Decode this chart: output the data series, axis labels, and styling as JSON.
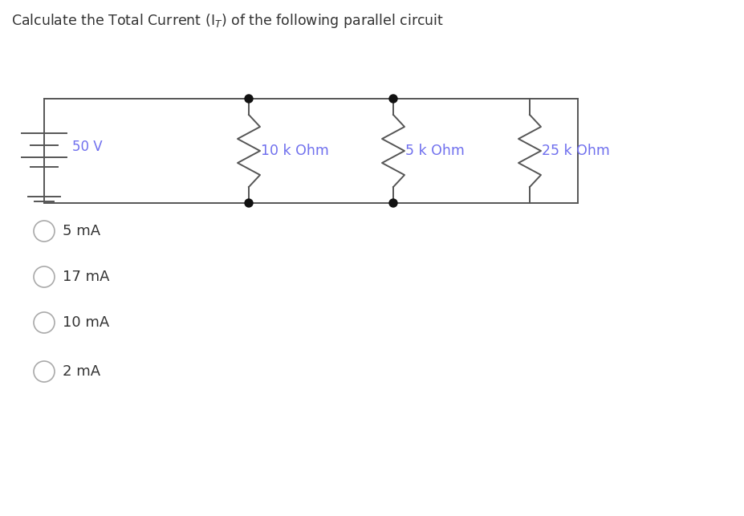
{
  "title": "Calculate the Total Current (I$_T$) of the following parallel circuit",
  "title_fontsize": 12.5,
  "background_color": "#ffffff",
  "circuit_color": "#555555",
  "resistor_label_color": "#7070ee",
  "voltage_label_color": "#7070ee",
  "voltage": "50 V",
  "resistors": [
    "10 k Ohm",
    "5 k Ohm",
    "25 k Ohm"
  ],
  "choices": [
    "5 mA",
    "17 mA",
    "10 mA",
    "2 mA"
  ],
  "choice_fontsize": 13,
  "choice_color": "#333333",
  "resistor_label_fontsize": 12.5,
  "radio_color": "#aaaaaa",
  "dot_color": "#111111",
  "lw": 1.4
}
